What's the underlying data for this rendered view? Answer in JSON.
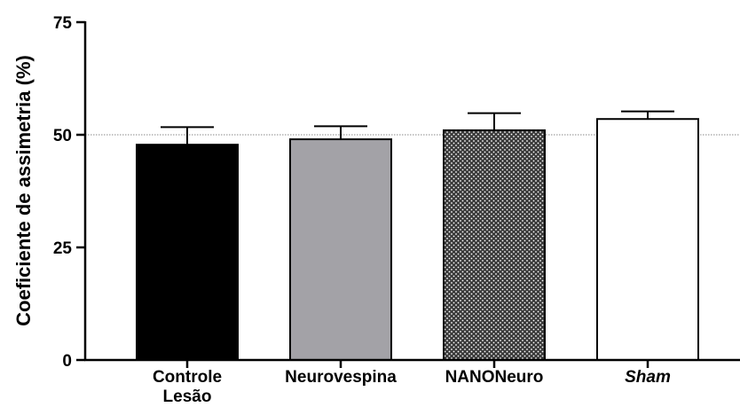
{
  "chart_data": {
    "type": "bar",
    "title": "",
    "xlabel": "",
    "ylabel": "Coeficiente de assimetria (%)",
    "ylim": [
      0,
      75
    ],
    "yticks": [
      0,
      25,
      50,
      75
    ],
    "reference_line": 50,
    "grid": false,
    "categories": [
      {
        "lines": [
          "Controle",
          "Lesão"
        ],
        "italic": false
      },
      {
        "lines": [
          "Neurovespina"
        ],
        "italic": false
      },
      {
        "lines": [
          "NANONeuro"
        ],
        "italic": false
      },
      {
        "lines": [
          "Sham"
        ],
        "italic": true
      }
    ],
    "values": [
      47.8,
      49.0,
      51.0,
      53.5
    ],
    "errors": [
      3.9,
      2.9,
      3.8,
      1.7
    ],
    "fills": [
      "solid-black",
      "solid-gray",
      "dotted-dark",
      "white"
    ],
    "colors": {
      "black": "#000000",
      "gray": "#a3a2a7",
      "dotted": "#3a3a3a",
      "dots": "#ffffff",
      "white": "#ffffff",
      "refline": "#888888"
    }
  }
}
